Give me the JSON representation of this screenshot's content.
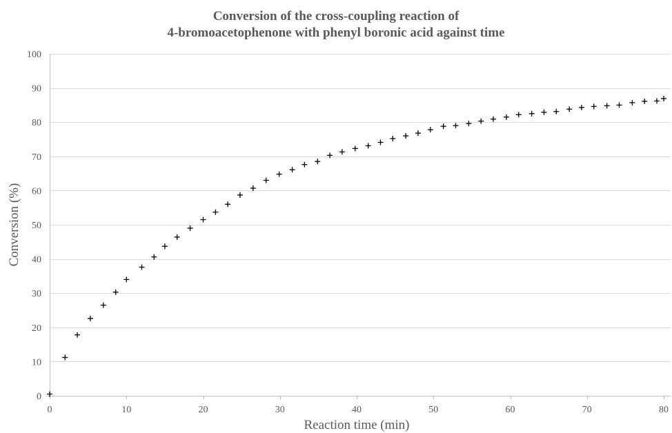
{
  "chart_data": {
    "type": "scatter",
    "title": [
      "Conversion of the cross-coupling reaction of",
      "4-bromoacetophenone with phenyl boronic acid against time"
    ],
    "xlabel": "Reaction time (min)",
    "ylabel": "Conversion (%)",
    "xlim": [
      0,
      80
    ],
    "ylim": [
      0,
      100
    ],
    "xticks": [
      0,
      10,
      20,
      30,
      40,
      50,
      60,
      70,
      80
    ],
    "yticks": [
      0,
      10,
      20,
      30,
      40,
      50,
      60,
      70,
      80,
      90,
      100
    ],
    "grid": "horizontal",
    "marker": "plus",
    "series": [
      {
        "x": [
          0,
          2,
          3.6,
          5.3,
          7,
          8.6,
          10,
          12,
          13.6,
          15,
          16.6,
          18.3,
          20,
          21.6,
          23.2,
          24.8,
          26.5,
          28.2,
          29.9,
          31.6,
          33.2,
          34.9,
          36.5,
          38.1,
          39.8,
          41.5,
          43.1,
          44.7,
          46.4,
          48,
          49.6,
          51.3,
          52.9,
          54.6,
          56.2,
          57.8,
          59.5,
          61.1,
          62.8,
          64.4,
          66,
          67.7,
          69.3,
          70.9,
          72.6,
          74.2,
          75.9,
          77.5,
          79.1,
          80
        ],
        "y": [
          0.5,
          11.2,
          17.8,
          22.6,
          26.5,
          30.3,
          34,
          37.6,
          40.6,
          43.7,
          46.4,
          49,
          51.5,
          53.7,
          56,
          58.7,
          60.7,
          63,
          64.8,
          66.1,
          67.6,
          68.5,
          70.3,
          71.3,
          72.3,
          73.1,
          74.1,
          75.2,
          76,
          76.8,
          77.8,
          78.8,
          79,
          79.6,
          80.3,
          80.9,
          81.5,
          82.2,
          82.5,
          82.9,
          83.1,
          83.8,
          84.3,
          84.6,
          84.8,
          85,
          85.7,
          86.1,
          86.2,
          86.9
        ]
      }
    ]
  }
}
